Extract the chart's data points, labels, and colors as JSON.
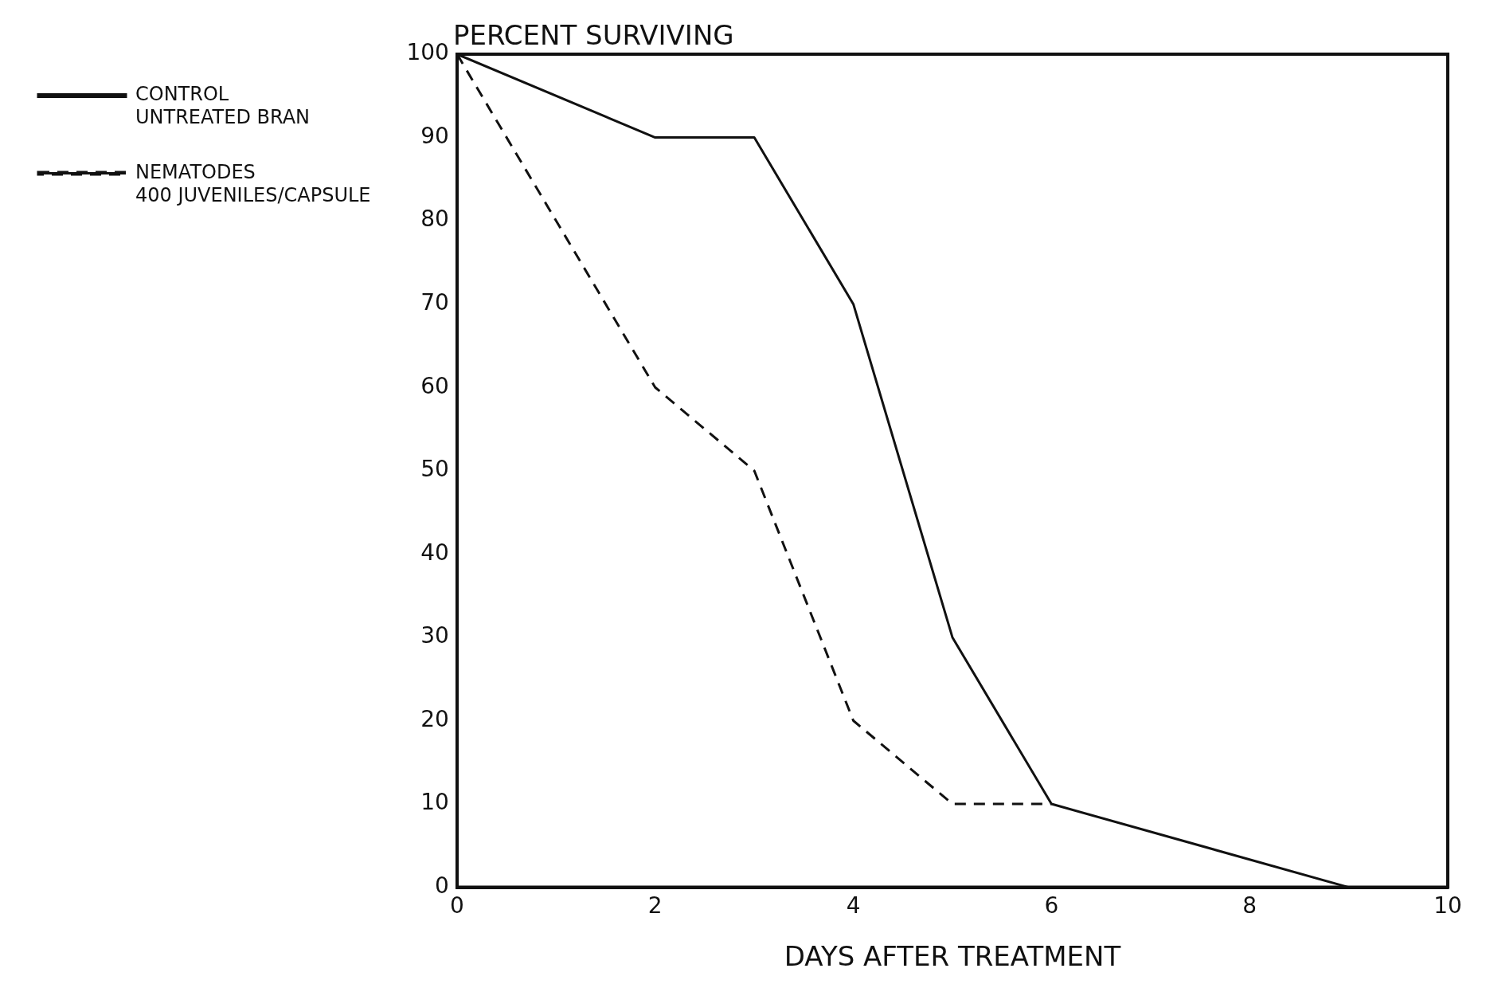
{
  "chart_data": {
    "type": "line",
    "ylabel": "PERCENT SURVIVING",
    "xlabel": "DAYS AFTER TREATMENT",
    "xlim": [
      0,
      10
    ],
    "xticks": [
      0,
      2,
      4,
      6,
      8,
      10
    ],
    "ylim": [
      0,
      100
    ],
    "yticks": [
      0,
      10,
      20,
      30,
      40,
      50,
      60,
      70,
      80,
      90,
      100
    ],
    "grid": false,
    "legend": "left",
    "marker": "none",
    "series": [
      {
        "name": "CONTROL\nUNTREATED BRAN",
        "color": "#111111",
        "line_style": "solid",
        "x": [
          0,
          2,
          3,
          4,
          5,
          6,
          9
        ],
        "values": [
          100,
          90,
          90,
          70,
          30,
          10,
          0
        ]
      },
      {
        "name": "NEMATODES\n400 JUVENILES/CAPSULE",
        "color": "#111111",
        "line_style": "dashed",
        "x": [
          0,
          2,
          3,
          4,
          5,
          6
        ],
        "values": [
          100,
          60,
          50,
          20,
          10,
          10
        ]
      }
    ]
  }
}
